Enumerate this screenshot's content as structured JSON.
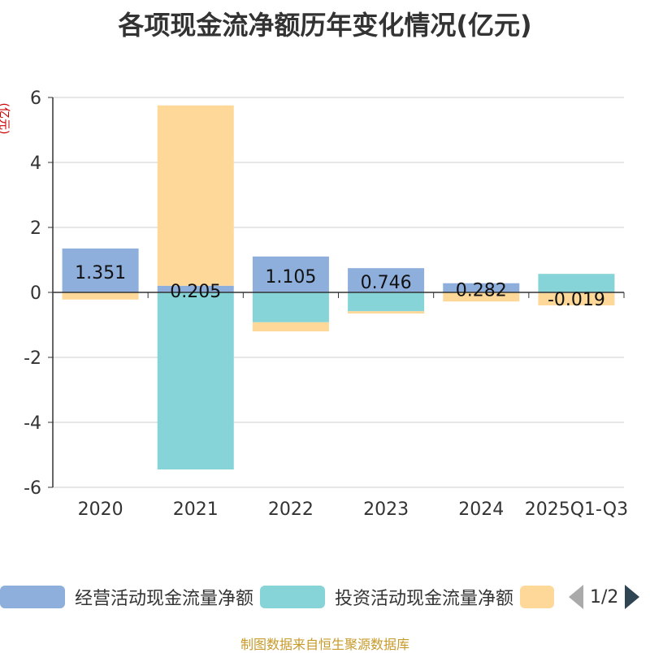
{
  "page": {
    "title": "各项现金流净额历年变化情况(亿元)",
    "unit_label": "(亿元)",
    "source": "制图数据来自恒生聚源数据库"
  },
  "legend": {
    "items": [
      {
        "label": "经营活动现金流量净额",
        "color": "#8eaedc"
      },
      {
        "label": "投资活动现金流量净额",
        "color": "#86d4d8"
      },
      {
        "label": "",
        "color": "#fed898"
      }
    ],
    "page_indicator": "1/2"
  },
  "chart_data": {
    "type": "bar",
    "stacked": true,
    "title": "各项现金流净额历年变化情况(亿元)",
    "ylabel": "(亿元)",
    "ylim": [
      -6,
      6
    ],
    "yticks": [
      6,
      4,
      2,
      0,
      -2,
      -4,
      -6
    ],
    "categories": [
      "2020",
      "2021",
      "2022",
      "2023",
      "2024",
      "2025Q1-Q3"
    ],
    "series": [
      {
        "name": "经营活动现金流量净额",
        "color": "#8eaedc",
        "values": [
          1.351,
          0.205,
          1.105,
          0.746,
          0.282,
          -0.019
        ],
        "labels": [
          "1.351",
          "0.205",
          "1.105",
          "0.746",
          "0.282",
          "-0.019"
        ]
      },
      {
        "name": "投资活动现金流量净额",
        "color": "#86d4d8",
        "values": [
          0,
          -5.45,
          -0.92,
          -0.58,
          0,
          0.57
        ]
      },
      {
        "name": "",
        "color": "#fed898",
        "values": [
          -0.22,
          5.55,
          -0.28,
          -0.07,
          -0.28,
          -0.38
        ]
      }
    ]
  }
}
